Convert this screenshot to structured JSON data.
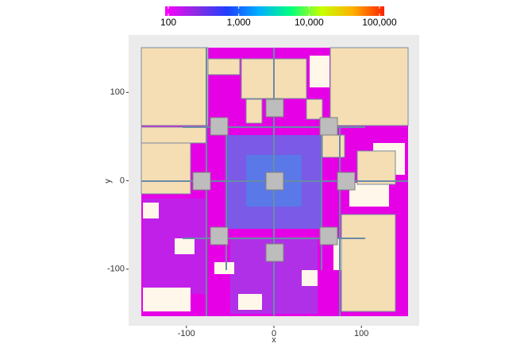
{
  "chart_data": {
    "type": "heatmap",
    "xlabel": "x",
    "ylabel": "y",
    "xlim": [
      -166,
      166
    ],
    "ylim": [
      -164,
      165
    ],
    "xticks": [
      -100,
      0,
      100
    ],
    "yticks": [
      -100,
      0,
      100
    ],
    "colorbar": {
      "log": true,
      "lim": [
        90,
        117000
      ],
      "ticks": [
        100,
        {
          "value": 1000,
          "label": "1,000"
        },
        {
          "value": 10000,
          "label": "10,000"
        },
        {
          "value": 100000,
          "label": "100,000"
        }
      ],
      "colors": [
        "#ff00ff",
        "#8a2be2",
        "#1e40ff",
        "#00b0ff",
        "#00ff80",
        "#c8ff00",
        "#ffb000",
        "#ff2000"
      ]
    }
  }
}
